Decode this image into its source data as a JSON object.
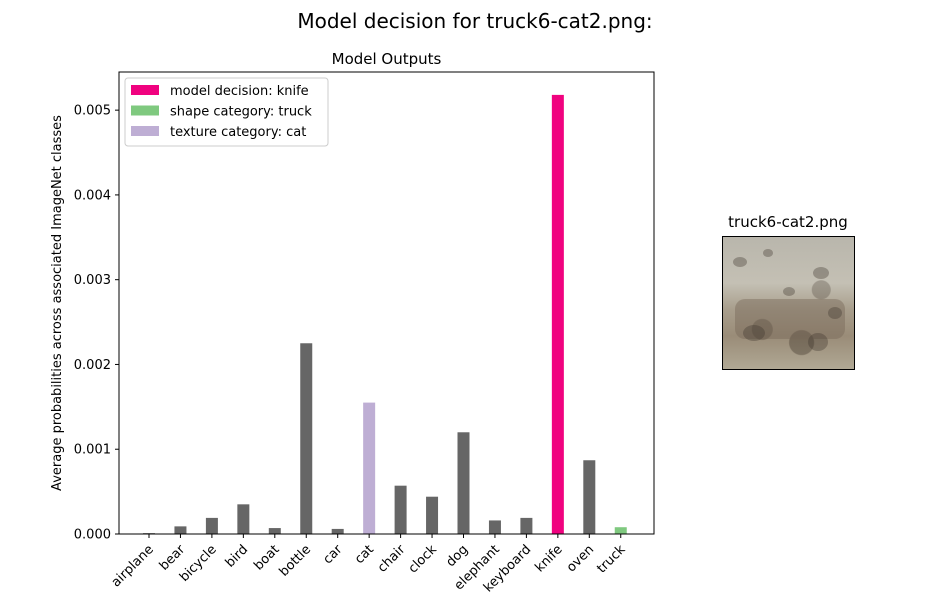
{
  "suptitle": "Model decision for truck6-cat2.png:",
  "image_title": "truck6-cat2.png",
  "colors": {
    "default": "#666666",
    "decision": "#f0027f",
    "shape": "#7fc97f",
    "texture": "#beaed4"
  },
  "chart_data": {
    "type": "bar",
    "title": "Model Outputs",
    "xlabel": "",
    "ylabel": "Average probabilities across associated ImageNet classes",
    "ylim": [
      0,
      0.00545
    ],
    "yticks": [
      "0.000",
      "0.001",
      "0.002",
      "0.003",
      "0.004",
      "0.005"
    ],
    "ytick_values": [
      0,
      0.001,
      0.002,
      0.003,
      0.004,
      0.005
    ],
    "categories": [
      "airplane",
      "bear",
      "bicycle",
      "bird",
      "boat",
      "bottle",
      "car",
      "cat",
      "chair",
      "clock",
      "dog",
      "elephant",
      "keyboard",
      "knife",
      "oven",
      "truck"
    ],
    "values": [
      1e-05,
      9e-05,
      0.00019,
      0.00035,
      7e-05,
      0.00225,
      6e-05,
      0.00155,
      0.00057,
      0.00044,
      0.0012,
      0.00016,
      0.00019,
      0.00518,
      0.00087,
      8e-05
    ],
    "bar_roles": [
      "default",
      "default",
      "default",
      "default",
      "default",
      "default",
      "default",
      "texture",
      "default",
      "default",
      "default",
      "default",
      "default",
      "decision",
      "default",
      "shape"
    ],
    "legend": [
      {
        "label": "model decision: knife",
        "role": "decision"
      },
      {
        "label": "shape category: truck",
        "role": "shape"
      },
      {
        "label": "texture category: cat",
        "role": "texture"
      }
    ],
    "legend_loc": "upper left",
    "grid": false
  }
}
